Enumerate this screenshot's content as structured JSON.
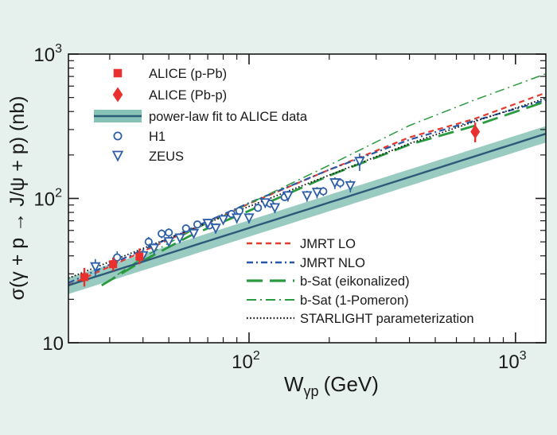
{
  "colors": {
    "background": "#e6f0ed",
    "plot_background": "#ffffff",
    "alice": "#e8312f",
    "fit_line": "#2d5a78",
    "fit_band": "#87c2b6",
    "hera": "#2d5fa8",
    "jmrt_lo": "#e23c2e",
    "jmrt_nlo": "#2857a5",
    "bsat": "#2a9a3f",
    "starlight": "#111111"
  },
  "chart_data": {
    "type": "scatter",
    "xlabel_main": "W",
    "xlabel_sub": "γp",
    "xlabel_tail": "(GeV)",
    "ylabel": "σ(γ + p → J/ψ + p) (nb)",
    "x_scale": "log",
    "y_scale": "log",
    "xlim": [
      21,
      1300
    ],
    "ylim": [
      10,
      1000
    ],
    "x_ticks": [
      {
        "value": 100,
        "base": "10",
        "exp": "2"
      },
      {
        "value": 1000,
        "base": "10",
        "exp": "3"
      }
    ],
    "y_ticks": [
      {
        "value": 10,
        "label": "10"
      },
      {
        "value": 100,
        "base": "10",
        "exp": "2"
      },
      {
        "value": 1000,
        "base": "10",
        "exp": "3"
      }
    ],
    "legend_position": "top-left",
    "legend_bottom_position": "bottom-right",
    "legend": [
      {
        "label": "ALICE (p-Pb)",
        "marker": "square",
        "color": "#e8312f"
      },
      {
        "label": "ALICE (Pb-p)",
        "marker": "diamond",
        "color": "#e8312f"
      },
      {
        "label": "power-law fit to ALICE data",
        "marker": "band",
        "color": "#2d5a78"
      },
      {
        "label": "H1",
        "marker": "circle",
        "color": "#2d5fa8"
      },
      {
        "label": "ZEUS",
        "marker": "triangle-down",
        "color": "#2d5fa8"
      }
    ],
    "legend_bottom": [
      {
        "label": "JMRT LO",
        "style": "dashed",
        "color": "#e23c2e"
      },
      {
        "label": "JMRT NLO",
        "style": "dashdot",
        "color": "#2857a5"
      },
      {
        "label": "b-Sat (eikonalized)",
        "style": "longdash",
        "color": "#2a9a3f"
      },
      {
        "label": "b-Sat (1-Pomeron)",
        "style": "dashdot-thin",
        "color": "#2a9a3f"
      },
      {
        "label": "STARLIGHT parameterization",
        "style": "dotted",
        "color": "#111111"
      }
    ],
    "series": [
      {
        "name": "ALICE (p-Pb)",
        "marker": "square",
        "color": "#e8312f",
        "points": [
          {
            "x": 24.1,
            "y": 28.5,
            "ylo": 24.5,
            "yhi": 33
          },
          {
            "x": 30.9,
            "y": 35.0,
            "ylo": 31.5,
            "yhi": 39
          },
          {
            "x": 38.8,
            "y": 39.5,
            "ylo": 35,
            "yhi": 45
          }
        ]
      },
      {
        "name": "ALICE (Pb-p)",
        "marker": "diamond",
        "color": "#e8312f",
        "points": [
          {
            "x": 706,
            "y": 290,
            "ylo": 245,
            "yhi": 335
          }
        ]
      },
      {
        "name": "H1",
        "marker": "circle",
        "color": "#2d5fa8",
        "points": [
          {
            "x": 32,
            "y": 39,
            "ylo": 35.5,
            "yhi": 43
          },
          {
            "x": 42,
            "y": 50,
            "ylo": 46,
            "yhi": 54
          },
          {
            "x": 47,
            "y": 57,
            "ylo": 53,
            "yhi": 61
          },
          {
            "x": 50,
            "y": 58,
            "ylo": 54,
            "yhi": 62
          },
          {
            "x": 58,
            "y": 62,
            "ylo": 58,
            "yhi": 66
          },
          {
            "x": 64,
            "y": 66,
            "ylo": 62,
            "yhi": 70
          },
          {
            "x": 71,
            "y": 65,
            "ylo": 61,
            "yhi": 69
          },
          {
            "x": 86,
            "y": 78,
            "ylo": 73,
            "yhi": 83
          },
          {
            "x": 92,
            "y": 82,
            "ylo": 77,
            "yhi": 87
          },
          {
            "x": 108,
            "y": 86,
            "ylo": 81,
            "yhi": 92
          },
          {
            "x": 120,
            "y": 92,
            "ylo": 86,
            "yhi": 98
          },
          {
            "x": 136,
            "y": 102,
            "ylo": 96,
            "yhi": 108
          },
          {
            "x": 190,
            "y": 112,
            "ylo": 104,
            "yhi": 120
          },
          {
            "x": 220,
            "y": 128,
            "ylo": 118,
            "yhi": 138
          }
        ]
      },
      {
        "name": "ZEUS",
        "marker": "triangle-down",
        "color": "#2d5fa8",
        "points": [
          {
            "x": 26.5,
            "y": 33.5,
            "ylo": 29,
            "yhi": 38
          },
          {
            "x": 40,
            "y": 40,
            "ylo": 36,
            "yhi": 44
          },
          {
            "x": 44,
            "y": 45,
            "ylo": 41,
            "yhi": 49
          },
          {
            "x": 50,
            "y": 50,
            "ylo": 46,
            "yhi": 54
          },
          {
            "x": 55,
            "y": 53,
            "ylo": 49,
            "yhi": 57
          },
          {
            "x": 62,
            "y": 57,
            "ylo": 53,
            "yhi": 61
          },
          {
            "x": 70,
            "y": 67,
            "ylo": 62,
            "yhi": 72
          },
          {
            "x": 75,
            "y": 62,
            "ylo": 57,
            "yhi": 67
          },
          {
            "x": 80,
            "y": 71,
            "ylo": 66,
            "yhi": 76
          },
          {
            "x": 90,
            "y": 73,
            "ylo": 67,
            "yhi": 79
          },
          {
            "x": 100,
            "y": 73,
            "ylo": 67,
            "yhi": 79
          },
          {
            "x": 115,
            "y": 93,
            "ylo": 86,
            "yhi": 100
          },
          {
            "x": 125,
            "y": 86,
            "ylo": 79,
            "yhi": 93
          },
          {
            "x": 140,
            "y": 104,
            "ylo": 95,
            "yhi": 113
          },
          {
            "x": 165,
            "y": 104,
            "ylo": 95,
            "yhi": 113
          },
          {
            "x": 180,
            "y": 110,
            "ylo": 100,
            "yhi": 120
          },
          {
            "x": 210,
            "y": 128,
            "ylo": 116,
            "yhi": 140
          },
          {
            "x": 240,
            "y": 122,
            "ylo": 110,
            "yhi": 134
          },
          {
            "x": 260,
            "y": 180,
            "ylo": 155,
            "yhi": 205
          }
        ]
      }
    ],
    "fit": {
      "name": "power-law fit to ALICE data",
      "a": 4.2,
      "b": 0.586,
      "band_frac": 0.13
    },
    "curves": [
      {
        "name": "JMRT LO",
        "style": "dashed",
        "color": "#e23c2e",
        "points": [
          [
            21,
            25
          ],
          [
            40,
            43
          ],
          [
            100,
            92
          ],
          [
            200,
            158
          ],
          [
            400,
            265
          ],
          [
            700,
            355
          ],
          [
            1300,
            540
          ]
        ]
      },
      {
        "name": "JMRT NLO",
        "style": "dashdot",
        "color": "#2857a5",
        "points": [
          [
            21,
            26
          ],
          [
            40,
            44
          ],
          [
            100,
            93
          ],
          [
            200,
            158
          ],
          [
            400,
            255
          ],
          [
            700,
            345
          ],
          [
            1300,
            480
          ]
        ]
      },
      {
        "name": "b-Sat (eikonalized)",
        "style": "longdash",
        "color": "#2a9a3f",
        "points": [
          [
            28,
            25
          ],
          [
            40,
            37
          ],
          [
            60,
            55
          ],
          [
            100,
            82
          ],
          [
            200,
            144
          ],
          [
            400,
            236
          ],
          [
            700,
            318
          ],
          [
            1300,
            470
          ]
        ]
      },
      {
        "name": "b-Sat (1-Pomeron)",
        "style": "dashdot-thin",
        "color": "#2a9a3f",
        "points": [
          [
            28,
            25
          ],
          [
            40,
            39
          ],
          [
            60,
            59
          ],
          [
            100,
            92
          ],
          [
            200,
            170
          ],
          [
            400,
            320
          ],
          [
            700,
            480
          ],
          [
            1300,
            730
          ]
        ]
      },
      {
        "name": "STARLIGHT parameterization",
        "style": "dotted",
        "color": "#111111",
        "points": [
          [
            21,
            28
          ],
          [
            40,
            45
          ],
          [
            100,
            88
          ],
          [
            200,
            145
          ],
          [
            400,
            240
          ],
          [
            700,
            340
          ],
          [
            1300,
            495
          ]
        ]
      }
    ]
  }
}
